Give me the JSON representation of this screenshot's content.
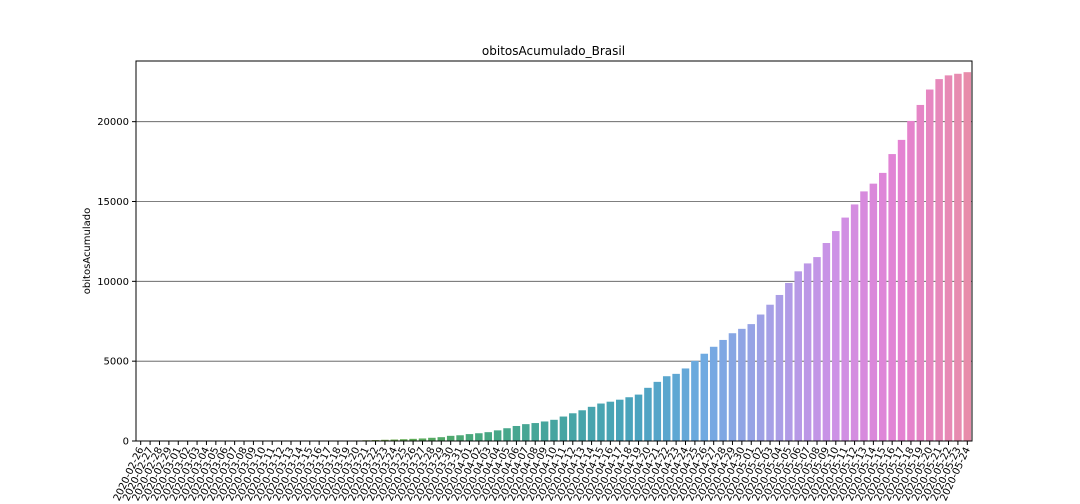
{
  "chart_data": {
    "type": "bar",
    "title": "obitosAcumulado_Brasil",
    "xlabel": "",
    "ylabel": "obitosAcumulado",
    "ylim": [
      0,
      23800
    ],
    "yticks": [
      0,
      5000,
      10000,
      15000,
      20000
    ],
    "grid": "horizontal",
    "categories": [
      "2020-02-26",
      "2020-02-27",
      "2020-02-28",
      "2020-02-29",
      "2020-03-01",
      "2020-03-02",
      "2020-03-03",
      "2020-03-04",
      "2020-03-05",
      "2020-03-06",
      "2020-03-07",
      "2020-03-08",
      "2020-03-09",
      "2020-03-10",
      "2020-03-11",
      "2020-03-12",
      "2020-03-13",
      "2020-03-14",
      "2020-03-15",
      "2020-03-16",
      "2020-03-17",
      "2020-03-18",
      "2020-03-19",
      "2020-03-20",
      "2020-03-21",
      "2020-03-22",
      "2020-03-23",
      "2020-03-24",
      "2020-03-25",
      "2020-03-26",
      "2020-03-27",
      "2020-03-28",
      "2020-03-29",
      "2020-03-30",
      "2020-03-31",
      "2020-04-01",
      "2020-04-02",
      "2020-04-03",
      "2020-04-04",
      "2020-04-05",
      "2020-04-06",
      "2020-04-07",
      "2020-04-08",
      "2020-04-09",
      "2020-04-10",
      "2020-04-11",
      "2020-04-12",
      "2020-04-13",
      "2020-04-14",
      "2020-04-15",
      "2020-04-16",
      "2020-04-17",
      "2020-04-18",
      "2020-04-19",
      "2020-04-20",
      "2020-04-21",
      "2020-04-22",
      "2020-04-23",
      "2020-04-24",
      "2020-04-25",
      "2020-04-26",
      "2020-04-27",
      "2020-04-28",
      "2020-04-29",
      "2020-04-30",
      "2020-05-01",
      "2020-05-02",
      "2020-05-03",
      "2020-05-04",
      "2020-05-05",
      "2020-05-06",
      "2020-05-07",
      "2020-05-08",
      "2020-05-09",
      "2020-05-10",
      "2020-05-11",
      "2020-05-12",
      "2020-05-13",
      "2020-05-14",
      "2020-05-15",
      "2020-05-16",
      "2020-05-17",
      "2020-05-18",
      "2020-05-19",
      "2020-05-20",
      "2020-05-21",
      "2020-05-22",
      "2020-05-23",
      "2020-05-24"
    ],
    "tick_labels": [
      "2020-02-26",
      "2020-02-27",
      "2020-02-28",
      "2020-02-29",
      "2020-03-01",
      "2020-03-02",
      "2020-03-03",
      "2020-03-04",
      "2020-03-05",
      "2020-03-06",
      "2020-03-07",
      "2020-03-08",
      "2020-03-09",
      "2020-03-10",
      "2020-03-11",
      "2020-03-12",
      "2020-03-13",
      "2020-03-14",
      "2020-03-15",
      "2020-03-16",
      "2020-03-17",
      "2020-03-18",
      "2020-03-19",
      "2020-03-20",
      "2020-03-21",
      "2020-03-22",
      "2020-03-23",
      "2020-03-24",
      "2020-03-25",
      "2020-03-26",
      "2020-03-27",
      "2020-03-28",
      "2020-03-29",
      "2020-03-30",
      "2020-03-31",
      "2020-04-01",
      "2020-04-02",
      "2020-04-03",
      "2020-04-04",
      "2020-04-05",
      "2020-04-06",
      "2020-04-07",
      "2020-04-08",
      "2020-04-09",
      "2020-04-10",
      "2020-04-11",
      "2020-04-12",
      "2020-04-13",
      "2020-04-14",
      "2020-04-15",
      "2020-04-16",
      "2020-04-17",
      "2020-04-18",
      "2020-04-19",
      "2020-04-20",
      "2020-04-21",
      "2020-04-22",
      "2020-04-23",
      "2020-04-24",
      "2020-04-25",
      "2020-04-26",
      "2020-04-27",
      "2020-04-28",
      "2020-04-29",
      "2020-04-30",
      "2020-05-01",
      "2020-05-02",
      "2020-05-03",
      "2020-05-04",
      "2020-05-05",
      "2020-05-06",
      "2020-05-07",
      "2020-05-08",
      "2020-05-09",
      "2020-05-10",
      "2020-05-11",
      "2020-05-12",
      "2020-05-13",
      "2020-05-14",
      "2020-05-15",
      "2020-05-16",
      "2020-05-17",
      "2020-05-18",
      "2020-05-19",
      "2020-05-20",
      "2020-05-21",
      "2020-05-22",
      "2020-05-23",
      "2020-05-24"
    ],
    "values": [
      0,
      0,
      0,
      0,
      0,
      0,
      0,
      0,
      0,
      0,
      0,
      0,
      0,
      0,
      0,
      0,
      0,
      1,
      3,
      6,
      11,
      18,
      25,
      34,
      46,
      57,
      77,
      92,
      111,
      136,
      159,
      201,
      240,
      324,
      359,
      432,
      486,
      553,
      667,
      800,
      941,
      1056,
      1124,
      1223,
      1328,
      1532,
      1736,
      1924,
      2141,
      2347,
      2462,
      2587,
      2741,
      2906,
      3331,
      3704,
      4057,
      4205,
      4543,
      5017,
      5466,
      5901,
      6329,
      6750,
      7025,
      7321,
      7921,
      8536,
      9146,
      9897,
      10627,
      11123,
      11519,
      12400,
      13149,
      13993,
      14817,
      15633,
      16118,
      16792,
      17971,
      18859,
      20047,
      21048,
      22013,
      22666,
      22900,
      23000,
      23100
    ]
  }
}
